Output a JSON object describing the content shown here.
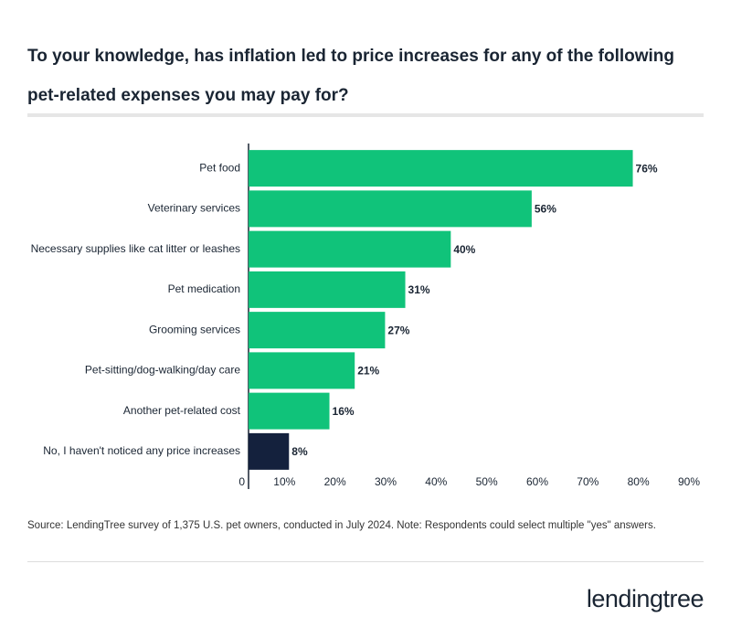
{
  "chart_data": {
    "type": "barh",
    "title": "To your knowledge, has inflation led to price increases for any of the following pet-related expenses you may pay for?",
    "categories": [
      "Pet food",
      "Veterinary services",
      "Necessary supplies like cat litter or leashes",
      "Pet medication",
      "Grooming services",
      "Pet-sitting/dog-walking/day care",
      "Another pet-related cost",
      "No, I haven't noticed any price increases"
    ],
    "values": [
      76,
      56,
      40,
      31,
      27,
      21,
      16,
      8
    ],
    "value_labels": [
      "76%",
      "56%",
      "40%",
      "31%",
      "27%",
      "21%",
      "16%",
      "8%"
    ],
    "colors": [
      "#10c37a",
      "#10c37a",
      "#10c37a",
      "#10c37a",
      "#10c37a",
      "#10c37a",
      "#10c37a",
      "#14213d"
    ],
    "xlim": [
      0,
      90
    ],
    "xticks": [
      0,
      {
        "value": 10,
        "label": "10%"
      },
      {
        "value": 20,
        "label": "20%"
      },
      {
        "value": 30,
        "label": "30%"
      },
      {
        "value": 40,
        "label": "40%"
      },
      {
        "value": 50,
        "label": "50%"
      },
      {
        "value": 60,
        "label": "60%"
      },
      {
        "value": 70,
        "label": "70%"
      },
      {
        "value": 80,
        "label": "80%"
      },
      {
        "value": 90,
        "label": "90%"
      }
    ],
    "source": "Source: LendingTree survey of 1,375 U.S. pet owners, conducted in July 2024. Note: Respondents could select multiple \"yes\" answers.",
    "logo": "lendingtree"
  }
}
